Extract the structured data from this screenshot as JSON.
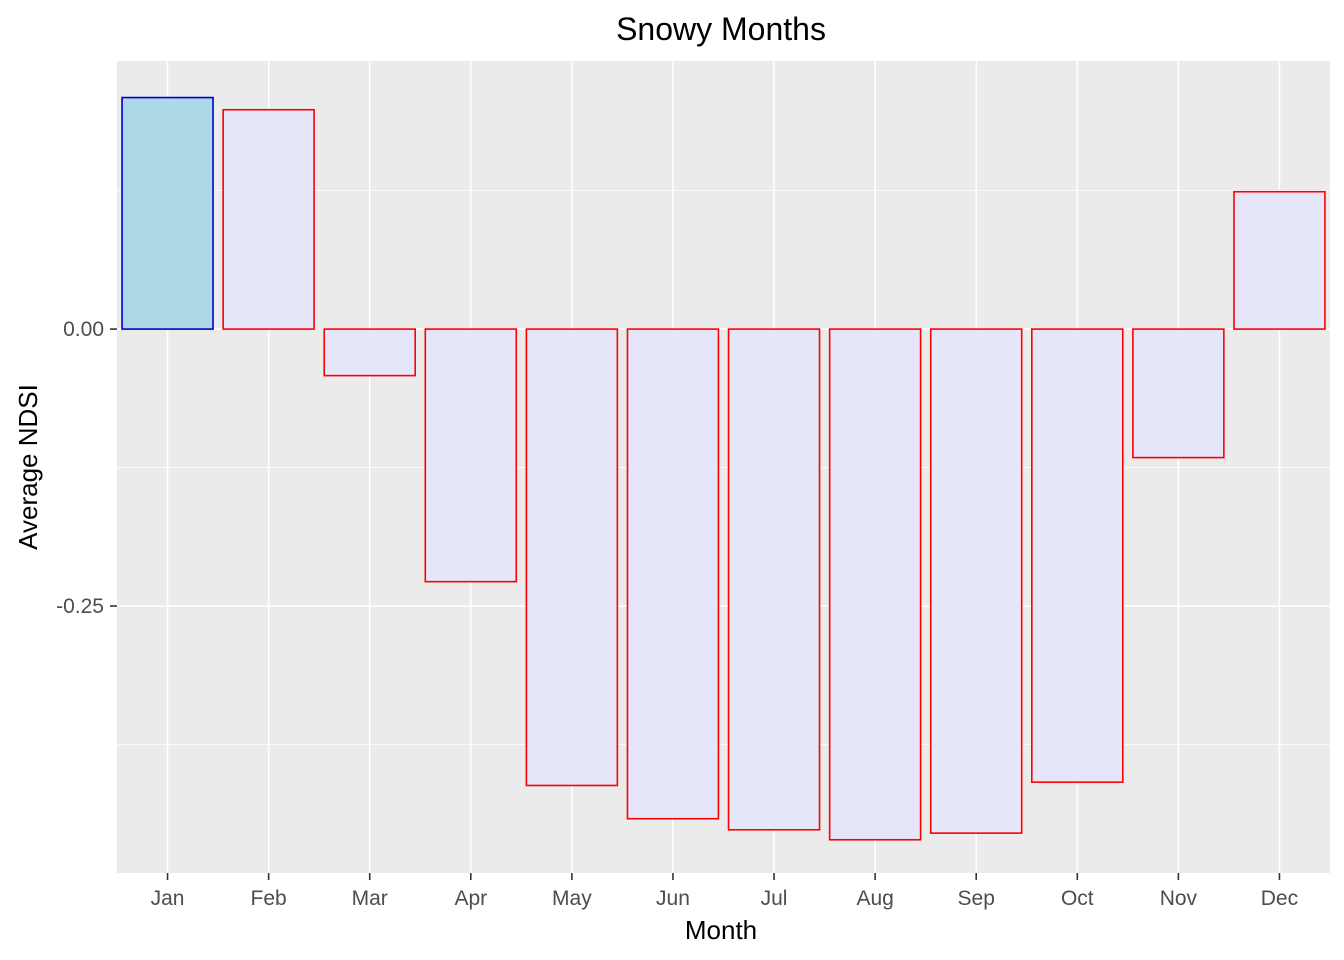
{
  "chart_data": {
    "type": "bar",
    "title": "Snowy Months",
    "xlabel": "Month",
    "ylabel": "Average NDSI",
    "categories": [
      "Jan",
      "Feb",
      "Mar",
      "Apr",
      "May",
      "Jun",
      "Jul",
      "Aug",
      "Sep",
      "Oct",
      "Nov",
      "Dec"
    ],
    "values": [
      0.209,
      0.198,
      -0.042,
      -0.228,
      -0.412,
      -0.442,
      -0.452,
      -0.461,
      -0.455,
      -0.409,
      -0.116,
      0.124
    ],
    "yticks": [
      0.0,
      -0.25
    ],
    "ytick_labels": [
      "0.00",
      "-0.25"
    ],
    "ylim": [
      -0.491,
      0.242
    ],
    "grid": true,
    "legend": "none",
    "colors": {
      "panel_background": "#ebebeb",
      "grid": "#ffffff",
      "highlight_fill": "#add8e6",
      "highlight_outline": "#0000cd",
      "default_fill": "#e6e6fa",
      "default_outline": "#ff0000"
    },
    "highlight_category": "Jan"
  }
}
